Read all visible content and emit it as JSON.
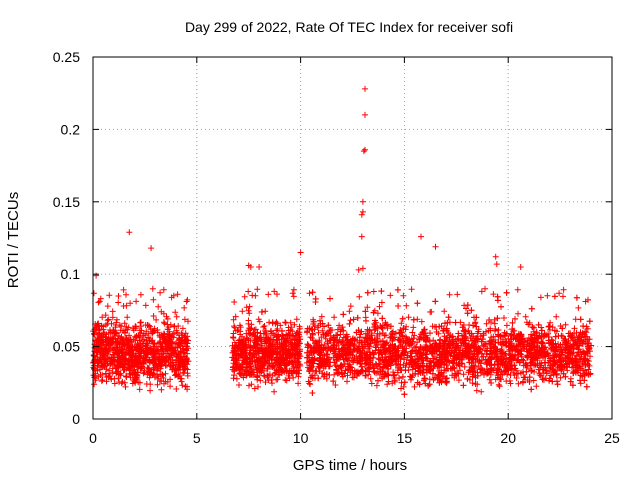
{
  "chart_data": {
    "type": "scatter",
    "title": "Day 299 of 2022, Rate Of TEC Index for receiver sofi",
    "xlabel": "GPS time / hours",
    "ylabel": "ROTI / TECUs",
    "xlim": [
      0,
      25
    ],
    "ylim": [
      0,
      0.25
    ],
    "x_ticks": [
      "0",
      "5",
      "10",
      "15",
      "20",
      "25"
    ],
    "y_ticks": [
      "0",
      "0.05",
      "0.1",
      "0.15",
      "0.2",
      "0.25"
    ],
    "grid": true,
    "marker": "+",
    "color": "#ff0000",
    "coverage_hours": [
      [
        0,
        4.6
      ],
      [
        6.7,
        10.0
      ],
      [
        10.3,
        24.0
      ]
    ],
    "typical_range": [
      0.015,
      0.07
    ],
    "outliers": [
      {
        "x": 1.75,
        "y": 0.129
      },
      {
        "x": 2.8,
        "y": 0.118
      },
      {
        "x": 10.0,
        "y": 0.115
      },
      {
        "x": 12.8,
        "y": 0.103
      },
      {
        "x": 12.95,
        "y": 0.126
      },
      {
        "x": 12.95,
        "y": 0.141
      },
      {
        "x": 13.0,
        "y": 0.143
      },
      {
        "x": 13.0,
        "y": 0.15
      },
      {
        "x": 13.05,
        "y": 0.185
      },
      {
        "x": 13.1,
        "y": 0.186
      },
      {
        "x": 13.1,
        "y": 0.21
      },
      {
        "x": 13.1,
        "y": 0.228
      },
      {
        "x": 13.0,
        "y": 0.104
      },
      {
        "x": 15.8,
        "y": 0.126
      },
      {
        "x": 16.5,
        "y": 0.119
      },
      {
        "x": 19.4,
        "y": 0.112
      },
      {
        "x": 19.45,
        "y": 0.107
      },
      {
        "x": 20.6,
        "y": 0.105
      },
      {
        "x": 7.5,
        "y": 0.106
      },
      {
        "x": 7.6,
        "y": 0.105
      },
      {
        "x": 8.0,
        "y": 0.105
      },
      {
        "x": 0.15,
        "y": 0.099
      }
    ]
  }
}
